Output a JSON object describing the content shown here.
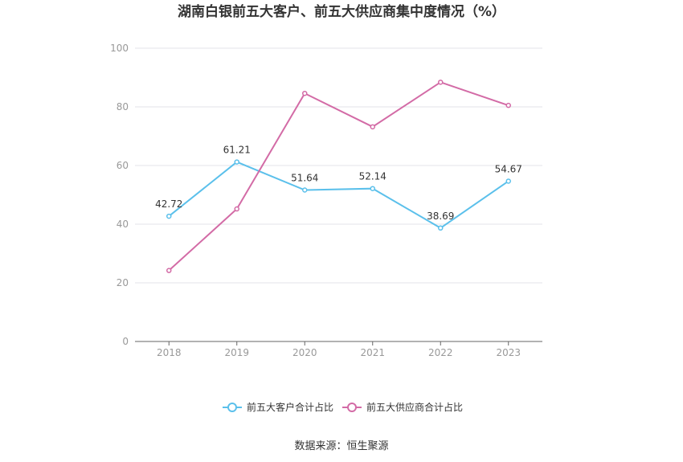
{
  "chart_data": {
    "type": "line",
    "title": "湖南白银前五大客户、前五大供应商集中度情况（%）",
    "categories": [
      "2018",
      "2019",
      "2020",
      "2021",
      "2022",
      "2023"
    ],
    "ylim": [
      0,
      100
    ],
    "yticks": [
      "0",
      "20",
      "40",
      "60",
      "80",
      "100"
    ],
    "grid": true,
    "legend_position": "bottom",
    "series": [
      {
        "name": "前五大客户合计占比",
        "color": "#5bc0eb",
        "values": [
          42.72,
          61.21,
          51.64,
          52.14,
          38.69,
          54.67
        ],
        "labels": [
          "42.72",
          "61.21",
          "51.64",
          "52.14",
          "38.69",
          "54.67"
        ]
      },
      {
        "name": "前五大供应商合计占比",
        "color": "#d36ba6",
        "values": [
          24.2,
          45.2,
          84.6,
          73.2,
          88.4,
          80.5
        ]
      }
    ]
  },
  "source_text": "数据来源：恒生聚源"
}
